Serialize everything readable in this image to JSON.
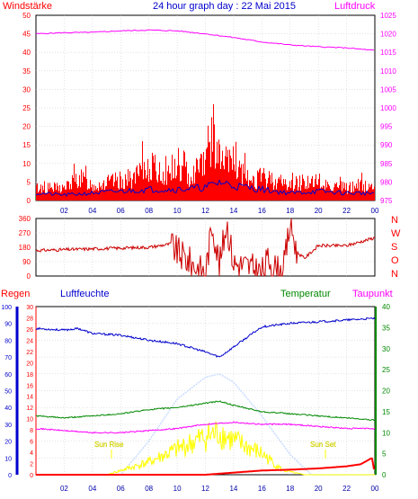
{
  "header": {
    "title": "24 hour graph day : 22 Mai 2015",
    "left_label": "Windstärke",
    "right_label": "Luftdruck"
  },
  "labels": {
    "regen": "Regen",
    "luftfeuchte": "Luftfeuchte",
    "temperatur": "Temperatur",
    "taupunkt": "Taupunkt",
    "sun_rise": "Sun Rise",
    "sun_set": "Sun Set"
  },
  "colors": {
    "wind_gust": "#ff0000",
    "wind_avg": "#0000cc",
    "wind_fill": "#009900",
    "pressure": "#ff00ff",
    "direction": "#cc0000",
    "rain": "#ff0000",
    "humidity": "#0000cc",
    "temperature": "#008800",
    "dewpoint": "#ff00ff",
    "solar": "#ffff00",
    "uv": "#c8dcff",
    "grid": "#c8c8c8",
    "axis_time": "#0000aa"
  },
  "chart_data": [
    {
      "type": "line",
      "name": "wind_pressure",
      "x_ticks": [
        "02",
        "04",
        "06",
        "08",
        "10",
        "12",
        "14",
        "16",
        "18",
        "20",
        "22",
        "00"
      ],
      "y_left_ticks": [
        "0",
        "5",
        "10",
        "15",
        "20",
        "25",
        "30",
        "35",
        "40",
        "45",
        "50"
      ],
      "y_right_ticks": [
        "975",
        "980",
        "985",
        "990",
        "995",
        "1000",
        "1005",
        "1010",
        "1015",
        "1020",
        "1025"
      ],
      "ylim_left": [
        0,
        50
      ],
      "ylim_right": [
        975,
        1025
      ],
      "pressure_hpa": [
        [
          0,
          1020
        ],
        [
          2,
          1020.3
        ],
        [
          4,
          1020.4
        ],
        [
          6,
          1020.8
        ],
        [
          8,
          1021
        ],
        [
          10,
          1020.8
        ],
        [
          12,
          1020
        ],
        [
          14,
          1019
        ],
        [
          16,
          1017.8
        ],
        [
          18,
          1017
        ],
        [
          20,
          1016.5
        ],
        [
          22,
          1016.2
        ],
        [
          24,
          1015.5
        ]
      ],
      "wind_gust_envelope": [
        [
          0,
          5
        ],
        [
          2,
          5
        ],
        [
          3,
          9
        ],
        [
          4,
          6
        ],
        [
          5,
          7
        ],
        [
          6,
          8
        ],
        [
          7,
          9
        ],
        [
          8,
          14
        ],
        [
          9,
          10
        ],
        [
          10,
          12
        ],
        [
          11,
          10
        ],
        [
          12,
          18
        ],
        [
          12.5,
          27
        ],
        [
          13,
          16
        ],
        [
          14,
          14
        ],
        [
          15,
          8
        ],
        [
          16,
          9
        ],
        [
          17,
          8
        ],
        [
          18,
          6
        ],
        [
          19,
          8
        ],
        [
          20,
          6
        ],
        [
          21,
          6
        ],
        [
          22,
          5
        ],
        [
          23,
          6
        ],
        [
          24,
          5
        ]
      ],
      "wind_avg": [
        [
          0,
          2
        ],
        [
          2,
          1.5
        ],
        [
          4,
          2
        ],
        [
          6,
          2.5
        ],
        [
          8,
          3
        ],
        [
          10,
          3
        ],
        [
          12,
          3.5
        ],
        [
          13,
          5
        ],
        [
          14,
          4
        ],
        [
          16,
          3
        ],
        [
          18,
          2
        ],
        [
          20,
          2.5
        ],
        [
          22,
          2
        ],
        [
          24,
          2
        ]
      ]
    },
    {
      "type": "line",
      "name": "wind_direction",
      "y_ticks": [
        "0",
        "90",
        "180",
        "270",
        "360"
      ],
      "y_right_labels": [
        "N",
        "W",
        "S",
        "O",
        "N"
      ],
      "ylim": [
        0,
        360
      ],
      "direction_deg": [
        [
          0,
          160
        ],
        [
          2,
          165
        ],
        [
          4,
          170
        ],
        [
          6,
          175
        ],
        [
          8,
          180
        ],
        [
          9.5,
          200
        ],
        [
          10,
          150
        ],
        [
          11,
          80
        ],
        [
          12,
          20
        ],
        [
          12.5,
          330
        ],
        [
          13,
          60
        ],
        [
          13.5,
          340
        ],
        [
          14,
          80
        ],
        [
          15,
          60
        ],
        [
          16,
          20
        ],
        [
          16.5,
          110
        ],
        [
          17,
          40
        ],
        [
          17.5,
          20
        ],
        [
          18,
          330
        ],
        [
          18.5,
          150
        ],
        [
          19,
          110
        ],
        [
          20,
          190
        ],
        [
          22,
          190
        ],
        [
          24,
          240
        ]
      ]
    },
    {
      "type": "line",
      "name": "humidity_temp",
      "y_rain_ticks": [
        "0",
        "10",
        "20",
        "30",
        "40",
        "50",
        "60",
        "70",
        "80",
        "90",
        "100"
      ],
      "y_hum_ticks": [
        "0",
        "2",
        "4",
        "6",
        "8",
        "10",
        "12",
        "14",
        "16",
        "18",
        "20",
        "22",
        "24",
        "26",
        "28",
        "30"
      ],
      "y_temp_ticks": [
        "0",
        "5",
        "10",
        "15",
        "20",
        "25",
        "30",
        "35",
        "40"
      ],
      "humidity_pct": [
        [
          0,
          87
        ],
        [
          2,
          86
        ],
        [
          3,
          87
        ],
        [
          4,
          84
        ],
        [
          6,
          83
        ],
        [
          8,
          80
        ],
        [
          10,
          78
        ],
        [
          12,
          73
        ],
        [
          13,
          70
        ],
        [
          14,
          76
        ],
        [
          15,
          82
        ],
        [
          16,
          88
        ],
        [
          17,
          89
        ],
        [
          18,
          90
        ],
        [
          20,
          91
        ],
        [
          22,
          92
        ],
        [
          24,
          93
        ]
      ],
      "temperature_c": [
        [
          0,
          14
        ],
        [
          2,
          13.5
        ],
        [
          4,
          14
        ],
        [
          6,
          14.5
        ],
        [
          8,
          15.5
        ],
        [
          10,
          16
        ],
        [
          12,
          17
        ],
        [
          13,
          17.5
        ],
        [
          14,
          16.5
        ],
        [
          16,
          15
        ],
        [
          18,
          14.5
        ],
        [
          20,
          14
        ],
        [
          22,
          13.5
        ],
        [
          24,
          13
        ]
      ],
      "dewpoint_c": [
        [
          0,
          11
        ],
        [
          2,
          10.5
        ],
        [
          4,
          10
        ],
        [
          6,
          10
        ],
        [
          8,
          10.5
        ],
        [
          10,
          11
        ],
        [
          12,
          12
        ],
        [
          14,
          12.5
        ],
        [
          16,
          12
        ],
        [
          18,
          12
        ],
        [
          20,
          11.5
        ],
        [
          22,
          11
        ],
        [
          24,
          11
        ]
      ],
      "solar": [
        [
          0,
          0
        ],
        [
          5,
          0
        ],
        [
          6,
          1
        ],
        [
          8,
          3
        ],
        [
          10,
          6
        ],
        [
          12,
          9
        ],
        [
          13,
          10
        ],
        [
          14,
          8
        ],
        [
          16,
          5
        ],
        [
          17.5,
          1
        ],
        [
          19,
          0
        ],
        [
          24,
          0
        ]
      ],
      "uv_curve": [
        [
          0,
          0
        ],
        [
          6,
          0
        ],
        [
          8,
          20
        ],
        [
          10,
          45
        ],
        [
          12,
          58
        ],
        [
          13,
          60
        ],
        [
          14,
          55
        ],
        [
          16,
          35
        ],
        [
          18,
          12
        ],
        [
          19.5,
          0
        ],
        [
          24,
          0
        ]
      ],
      "rain_mm": [
        [
          0,
          0
        ],
        [
          12,
          0
        ],
        [
          14,
          0.5
        ],
        [
          16,
          1
        ],
        [
          18,
          1.2
        ],
        [
          20,
          1.5
        ],
        [
          22,
          2
        ],
        [
          23,
          2.5
        ],
        [
          23.8,
          4
        ],
        [
          24,
          0
        ]
      ]
    }
  ]
}
